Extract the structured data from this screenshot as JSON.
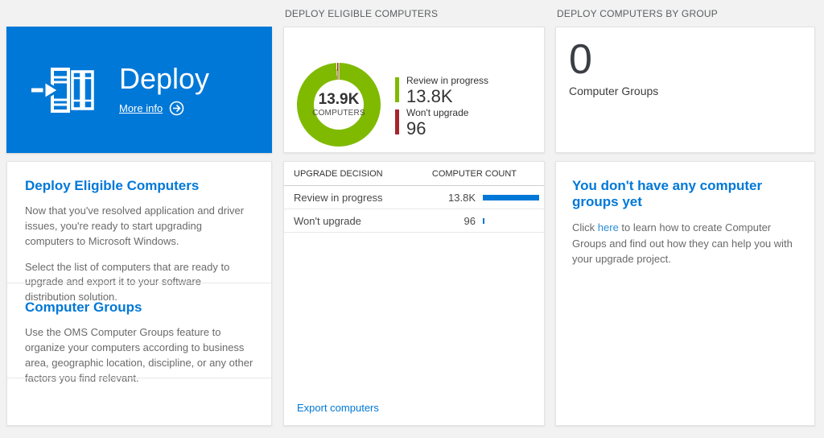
{
  "colors": {
    "accent_blue": "#0078d7",
    "tile_blue": "#0078d7",
    "green": "#7fba00",
    "red": "#a4262c",
    "page_background": "#f2f2f2"
  },
  "left": {
    "tile": {
      "title": "Deploy",
      "more_info": "More info"
    },
    "sections": [
      {
        "heading": "Deploy Eligible Computers",
        "paragraphs": [
          "Now that you've resolved application and driver issues, you're ready to start upgrading computers to Microsoft Windows.",
          "Select the list of computers that are ready to upgrade and export it to your software distribution solution."
        ]
      },
      {
        "heading": "Computer Groups",
        "paragraphs": [
          "Use the OMS Computer Groups feature to organize your computers according to business area, geographic location, discipline, or any other factors you find relevant."
        ]
      }
    ]
  },
  "middle": {
    "header": "DEPLOY ELIGIBLE COMPUTERS",
    "donut": {
      "center_value": "13.9K",
      "center_label": "COMPUTERS"
    },
    "legend": [
      {
        "label": "Review in progress",
        "value": "13.8K",
        "color": "#7fba00"
      },
      {
        "label": "Won't upgrade",
        "value": "96",
        "color": "#a4262c"
      }
    ],
    "table": {
      "columns": [
        "UPGRADE DECISION",
        "COMPUTER COUNT"
      ],
      "bar_color": "#0078d7",
      "rows": [
        {
          "label": "Review in progress",
          "value": "13.8K",
          "count_raw": 13800
        },
        {
          "label": "Won't upgrade",
          "value": "96",
          "count_raw": 96
        }
      ]
    },
    "export_link": "Export computers"
  },
  "right": {
    "header": "DEPLOY COMPUTERS BY GROUP",
    "count": "0",
    "count_label": "Computer Groups",
    "empty": {
      "heading": "You don't have any computer groups yet",
      "before": "Click ",
      "link": "here",
      "after": " to learn how to create Computer Groups and find out how they can help you with your upgrade project."
    }
  },
  "chart_data": {
    "type": "pie",
    "title": "DEPLOY ELIGIBLE COMPUTERS",
    "center_label": "13.9K COMPUTERS",
    "legend_position": "right",
    "slices": [
      {
        "label": "Review in progress",
        "value": 13800,
        "color": "#7fba00"
      },
      {
        "label": "Won't upgrade",
        "value": 96,
        "color": "#a4262c"
      }
    ],
    "table": {
      "type": "table",
      "columns": [
        "UPGRADE DECISION",
        "COMPUTER COUNT"
      ],
      "rows": [
        [
          "Review in progress",
          13800
        ],
        [
          "Won't upgrade",
          96
        ]
      ]
    }
  }
}
